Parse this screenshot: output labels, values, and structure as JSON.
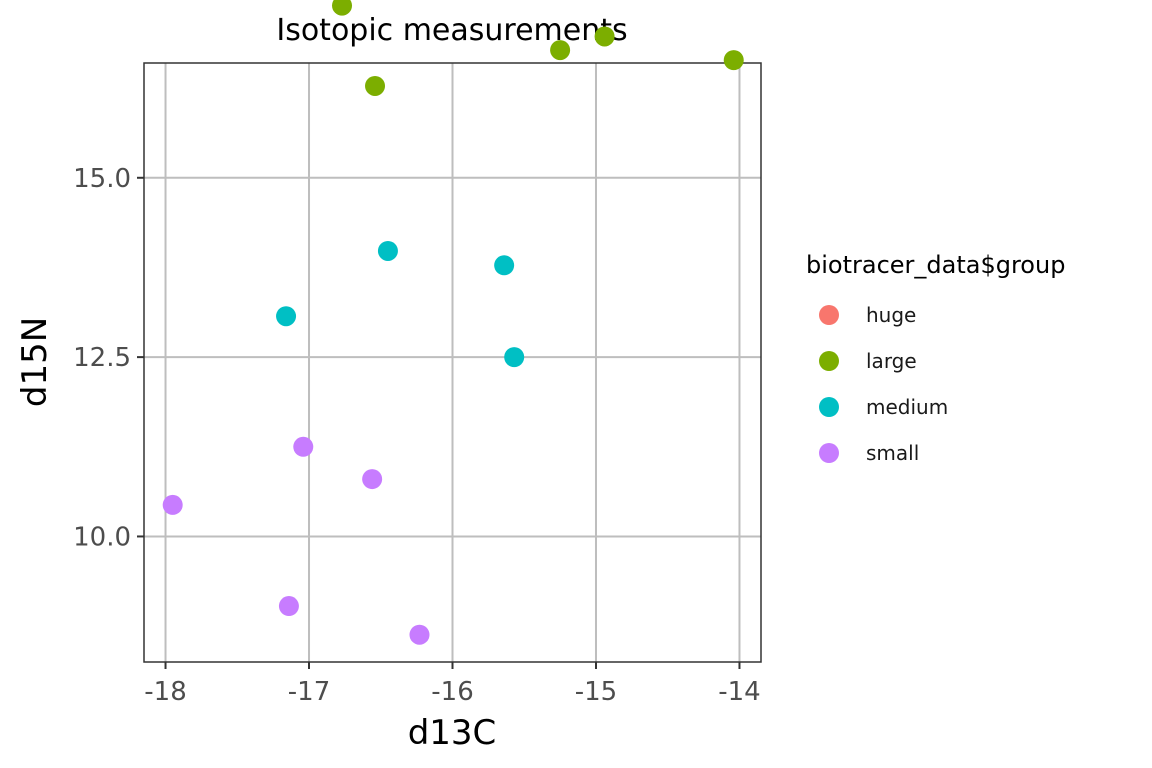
{
  "chart_data": {
    "type": "scatter",
    "title": "Isotopic measurements",
    "xlabel": "d13C",
    "ylabel": "d15N",
    "xlim": [
      -18.15,
      -13.85
    ],
    "ylim": [
      8.25,
      16.6
    ],
    "xticks": [
      -18,
      -17,
      -16,
      -15,
      -14
    ],
    "xtick_labels": [
      "-18",
      "-17",
      "-16",
      "-15",
      "-14"
    ],
    "yticks": [
      10.0,
      12.5,
      15.0
    ],
    "ytick_labels": [
      "10.0",
      "12.5",
      "15.0"
    ],
    "grid": true,
    "legend_title": "biotracer_data$group",
    "legend_position": "right",
    "series": [
      {
        "name": "huge",
        "color": "#F8766D",
        "points": []
      },
      {
        "name": "large",
        "color": "#7CAE00",
        "points": [
          {
            "x": -16.77,
            "y": 17.4
          },
          {
            "x": -16.54,
            "y": 16.28
          },
          {
            "x": -15.25,
            "y": 16.78
          },
          {
            "x": -14.94,
            "y": 16.97
          },
          {
            "x": -14.04,
            "y": 16.64
          }
        ]
      },
      {
        "name": "medium",
        "color": "#00BFC4",
        "points": [
          {
            "x": -16.45,
            "y": 13.98
          },
          {
            "x": -15.64,
            "y": 13.78
          },
          {
            "x": -17.16,
            "y": 13.07
          },
          {
            "x": -15.57,
            "y": 12.5
          }
        ]
      },
      {
        "name": "small",
        "color": "#C77CFF",
        "points": [
          {
            "x": -17.04,
            "y": 11.25
          },
          {
            "x": -16.56,
            "y": 10.8
          },
          {
            "x": -17.95,
            "y": 10.44
          },
          {
            "x": -17.14,
            "y": 9.03
          },
          {
            "x": -16.23,
            "y": 8.63
          }
        ]
      }
    ]
  }
}
